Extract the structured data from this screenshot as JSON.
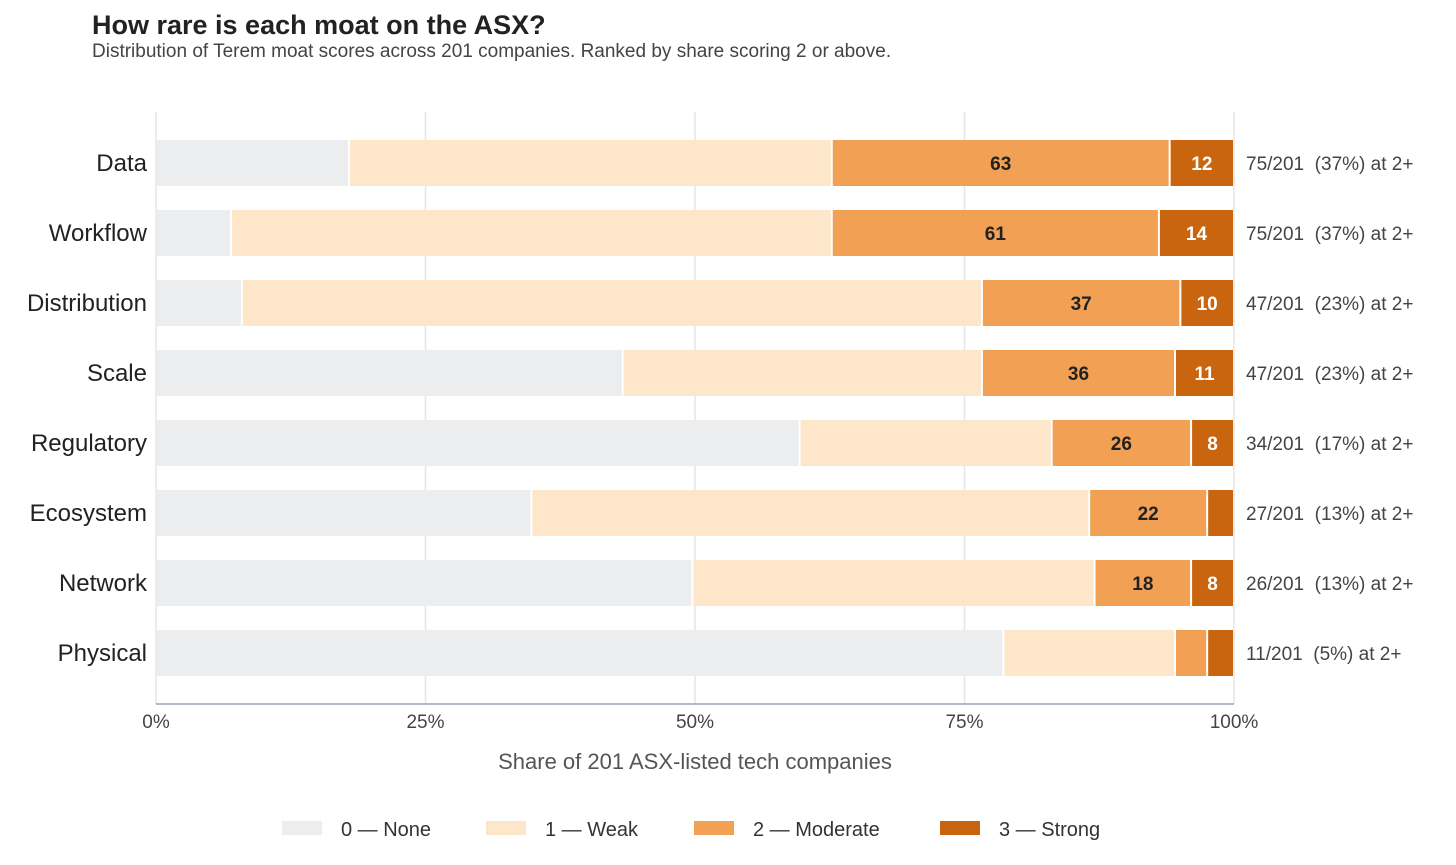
{
  "chart_data": {
    "type": "bar",
    "orientation": "horizontal",
    "stacked": "percent",
    "title": "How rare is each moat on the ASX?",
    "subtitle": "Distribution of Terem moat scores across 201 companies.  Ranked by share scoring 2 or above.",
    "xlabel": "Share of 201 ASX-listed tech companies",
    "ylabel": "",
    "xlim": [
      0,
      100
    ],
    "x_ticks": [
      "0%",
      "25%",
      "50%",
      "75%",
      "100%"
    ],
    "total": 201,
    "categories": [
      "Data",
      "Workflow",
      "Distribution",
      "Scale",
      "Regulatory",
      "Ecosystem",
      "Network",
      "Physical"
    ],
    "series": [
      {
        "name": "0 — None",
        "color": "#ecedef",
        "values": [
          36,
          14,
          16,
          87,
          120,
          70,
          100,
          158
        ]
      },
      {
        "name": "1 — Weak",
        "color": "#fde6c9",
        "values": [
          90,
          112,
          138,
          67,
          47,
          104,
          75,
          32
        ]
      },
      {
        "name": "2 — Moderate",
        "color": "#f2a054",
        "values": [
          63,
          61,
          37,
          36,
          26,
          22,
          18,
          6
        ]
      },
      {
        "name": "3 — Strong",
        "color": "#c9650f",
        "values": [
          12,
          14,
          10,
          11,
          8,
          5,
          8,
          5
        ]
      }
    ],
    "labeled_series": [
      2,
      3
    ],
    "annotations": [
      "75/201  (37%) at 2+",
      "75/201  (37%) at 2+",
      "47/201  (23%) at 2+",
      "47/201  (23%) at 2+",
      "34/201  (17%) at 2+",
      "27/201  (13%) at 2+",
      "26/201  (13%) at 2+",
      "11/201  (5%) at 2+"
    ],
    "grid": true,
    "legend_position": "bottom"
  }
}
